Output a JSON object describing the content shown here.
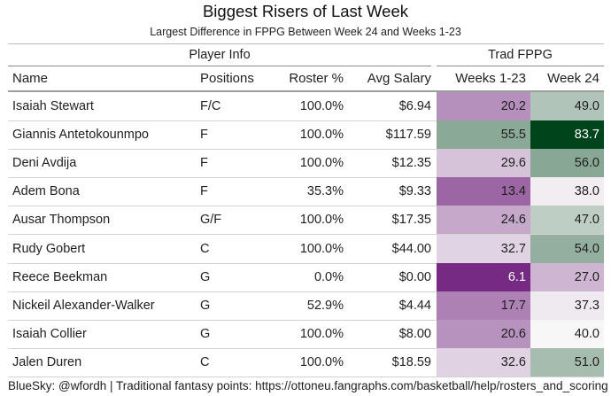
{
  "chart_data": {
    "type": "table",
    "title": "Biggest Risers of Last Week",
    "subtitle": "Largest Difference in FPPG Between Week 24 and Weeks 1-23",
    "spanners": [
      "Player Info",
      "Trad FPPG"
    ],
    "columns": [
      "Name",
      "Positions",
      "Roster %",
      "Avg Salary",
      "Weeks 1-23",
      "Week 24"
    ],
    "rows": [
      {
        "name": "Isaiah Stewart",
        "positions": "F/C",
        "roster": "100.0%",
        "salary": "$6.94",
        "wk": "20.2",
        "w24": "49.0"
      },
      {
        "name": "Giannis Antetokounmpo",
        "positions": "F",
        "roster": "100.0%",
        "salary": "$117.59",
        "wk": "55.5",
        "w24": "83.7"
      },
      {
        "name": "Deni Avdija",
        "positions": "F",
        "roster": "100.0%",
        "salary": "$12.35",
        "wk": "29.6",
        "w24": "56.0"
      },
      {
        "name": "Adem Bona",
        "positions": "F",
        "roster": "35.3%",
        "salary": "$9.33",
        "wk": "13.4",
        "w24": "38.0"
      },
      {
        "name": "Ausar Thompson",
        "positions": "G/F",
        "roster": "100.0%",
        "salary": "$17.35",
        "wk": "24.6",
        "w24": "47.0"
      },
      {
        "name": "Rudy Gobert",
        "positions": "C",
        "roster": "100.0%",
        "salary": "$44.00",
        "wk": "32.7",
        "w24": "54.0"
      },
      {
        "name": "Reece Beekman",
        "positions": "G",
        "roster": "0.0%",
        "salary": "$0.00",
        "wk": "6.1",
        "w24": "27.0"
      },
      {
        "name": "Nickeil Alexander-Walker",
        "positions": "G",
        "roster": "52.9%",
        "salary": "$4.44",
        "wk": "17.7",
        "w24": "37.3"
      },
      {
        "name": "Isaiah Collier",
        "positions": "G",
        "roster": "100.0%",
        "salary": "$8.00",
        "wk": "20.6",
        "w24": "40.0"
      },
      {
        "name": "Jalen Duren",
        "positions": "C",
        "roster": "100.0%",
        "salary": "$18.59",
        "wk": "32.6",
        "w24": "51.0"
      }
    ],
    "color_scale": {
      "low": "#762a83",
      "mid": "#f7f7f7",
      "high": "#00441b",
      "min": 6.1,
      "mid_value": 40,
      "max": 83.7
    }
  },
  "footer": "BlueSky: @wfordh | Traditional fantasy points: https://ottoneu.fangraphs.com/basketball/help/rosters_and_scoring"
}
